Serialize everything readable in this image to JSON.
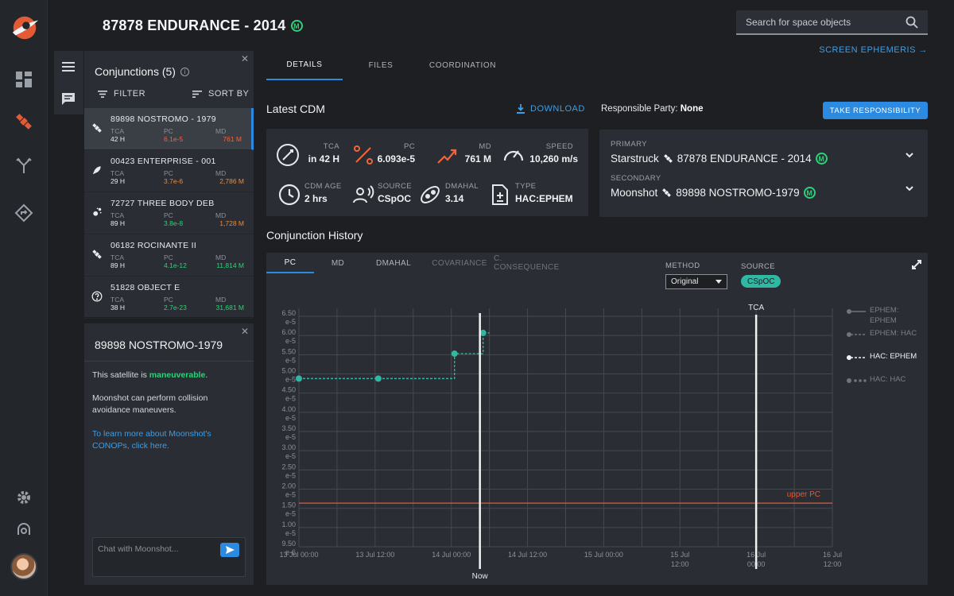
{
  "app": {
    "title": "87878 ENDURANCE - 2014",
    "badge": "M"
  },
  "search": {
    "placeholder": "Search for space objects"
  },
  "tabs": [
    {
      "label": "DETAILS",
      "active": true
    },
    {
      "label": "FILES",
      "active": false
    },
    {
      "label": "COORDINATION",
      "active": false
    }
  ],
  "screen_ephemeris": "SCREEN EPHEMERIS",
  "conjunctions": {
    "title": "Conjunctions (5)",
    "filter_label": "FILTER",
    "sort_label": "SORT BY",
    "items": [
      {
        "name": "89898 NOSTROMO - 1979",
        "icon": "satellite-icon",
        "tca": "42 H",
        "pc": "6.1e-5",
        "pc_color": "red",
        "md": "761 M",
        "md_color": "red",
        "active": true
      },
      {
        "name": "00423 ENTERPRISE - 001",
        "icon": "rocket-icon",
        "tca": "29 H",
        "pc": "3.7e-6",
        "pc_color": "orange",
        "md": "2,786 M",
        "md_color": "orange",
        "active": false
      },
      {
        "name": "72727 THREE BODY DEB",
        "icon": "debris-icon",
        "tca": "89 H",
        "pc": "3.8e-8",
        "pc_color": "green",
        "md": "1,728 M",
        "md_color": "orange",
        "active": false
      },
      {
        "name": "06182 ROCINANTE II",
        "icon": "satellite-icon",
        "tca": "89 H",
        "pc": "4.1e-12",
        "pc_color": "green",
        "md": "11,814 M",
        "md_color": "green",
        "active": false
      },
      {
        "name": "51828 OBJECT E",
        "icon": "unknown-object-icon",
        "tca": "38 H",
        "pc": "2.7e-23",
        "pc_color": "green",
        "md": "31,681 M",
        "md_color": "green",
        "active": false
      }
    ],
    "col_labels": {
      "tca": "TCA",
      "pc": "PC",
      "md": "MD"
    }
  },
  "chat": {
    "title": "89898 NOSTROMO-1979",
    "line1_prefix": "This satellite is ",
    "line1_highlight": "maneuverable",
    "line1_suffix": ".",
    "line2": "Moonshot can perform collision avoidance maneuvers.",
    "link": "To learn more about Moonshot's CONOPs, click here.",
    "input_placeholder": "Chat with Moonshot..."
  },
  "cdm": {
    "title": "Latest CDM",
    "download": "DOWNLOAD",
    "responsible_label": "Responsible Party:",
    "responsible_value": "None",
    "take_responsibility": "TAKE RESPONSIBILITY",
    "metrics": {
      "tca": {
        "label": "TCA",
        "value": "in 42 H"
      },
      "pc": {
        "label": "PC",
        "value": "6.093e-5"
      },
      "md": {
        "label": "MD",
        "value": "761 M"
      },
      "speed": {
        "label": "SPEED",
        "value": "10,260 m/s"
      },
      "cdm_age": {
        "label": "CDM AGE",
        "value": "2 hrs"
      },
      "source": {
        "label": "SOURCE",
        "value": "CSpOC"
      },
      "dmahal": {
        "label": "DMAHAL",
        "value": "3.14"
      },
      "type": {
        "label": "TYPE",
        "value": "HAC:EPHEM"
      }
    }
  },
  "objects": {
    "primary_label": "PRIMARY",
    "primary_operator": "Starstruck",
    "primary_name": "87878 ENDURANCE - 2014",
    "secondary_label": "SECONDARY",
    "secondary_operator": "Moonshot",
    "secondary_name": "89898 NOSTROMO-1979"
  },
  "history": {
    "title": "Conjunction History",
    "tabs": [
      {
        "label": "PC",
        "state": "active"
      },
      {
        "label": "MD",
        "state": "normal"
      },
      {
        "label": "DMAHAL",
        "state": "normal"
      },
      {
        "label": "COVARIANCE",
        "state": "muted"
      },
      {
        "label": "C. CONSEQUENCE",
        "state": "muted"
      }
    ],
    "method_label": "METHOD",
    "method_value": "Original",
    "source_label": "SOURCE",
    "source_value": "CSpOC"
  },
  "chart_data": {
    "type": "line",
    "title": "",
    "xlabel": "",
    "ylabel": "",
    "x_ticks": [
      "13 Jul 00:00",
      "13 Jul 12:00",
      "14 Jul 00:00",
      "14 Jul 12:00",
      "15 Jul 00:00",
      "15 Jul 12:00",
      "16 Jul 00:00",
      "16 Jul 12:00"
    ],
    "y_ticks": [
      "6.50 e-5",
      "6.00 e-5",
      "5.50 e-5",
      "5.00 e-5",
      "4.50 e-5",
      "4.00 e-5",
      "3.50 e-5",
      "3.00 e-5",
      "2.50 e-5",
      "2.00 e-5",
      "1.50 e-5",
      "1.00 e-5",
      "9.50 e-6"
    ],
    "x_range_hours": [
      0,
      84
    ],
    "series": [
      {
        "name": "HAC: EPHEM",
        "style": "dashed-step",
        "color": "#2fb8a2",
        "points": [
          {
            "x_hours": 0,
            "y": 5e-05
          },
          {
            "x_hours": 12.5,
            "y": 5e-05
          },
          {
            "x_hours": 24.5,
            "y": 5.6e-05
          },
          {
            "x_hours": 29.0,
            "y": 6.1e-05
          },
          {
            "x_hours": 30.0,
            "y": 6.1e-05
          }
        ]
      }
    ],
    "threshold": {
      "label": "upper PC",
      "value": 2e-05,
      "color": "#e25a36"
    },
    "now_marker": {
      "label": "Now",
      "x_hours": 28.5
    },
    "tca_marker": {
      "label": "TCA",
      "x_hours": 72
    },
    "legend": [
      {
        "label": "EPHEM: EPHEM",
        "style": "solid",
        "active": false
      },
      {
        "label": "EPHEM: HAC",
        "style": "dash",
        "active": false
      },
      {
        "label": "HAC: EPHEM",
        "style": "dash-bright",
        "active": true
      },
      {
        "label": "HAC: HAC",
        "style": "dots",
        "active": false
      }
    ]
  }
}
